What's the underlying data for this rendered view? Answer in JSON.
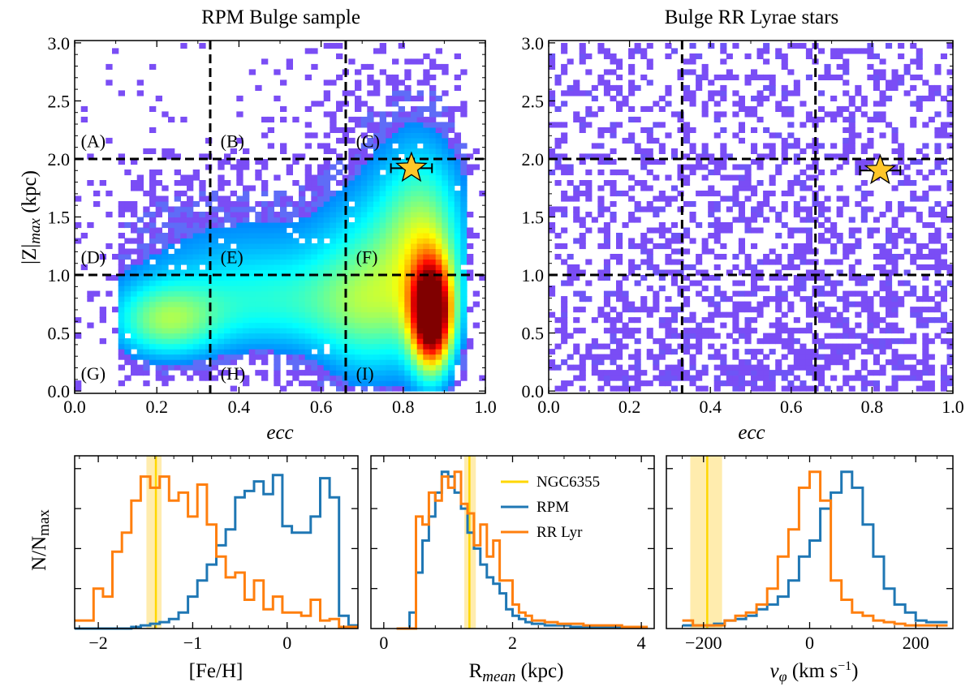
{
  "chart_data": [
    {
      "type": "heatmap",
      "title": "RPM Bulge sample",
      "xlabel": "ecc",
      "ylabel": "|Z|max (kpc)",
      "xlim": [
        0.0,
        1.0
      ],
      "ylim": [
        -0.02,
        3.02
      ],
      "xticks": [
        "0.0",
        "0.2",
        "0.4",
        "0.6",
        "0.8",
        "1.0"
      ],
      "yticks": [
        "0.0",
        "0.5",
        "1.0",
        "1.5",
        "2.0",
        "2.5",
        "3.0"
      ],
      "divider_lines": {
        "x": [
          0.33,
          0.66
        ],
        "y": [
          1.0,
          2.0
        ]
      },
      "region_labels": [
        "(A)",
        "(B)",
        "(C)",
        "(D)",
        "(E)",
        "(F)",
        "(G)",
        "(H)",
        "(I)"
      ],
      "marker": {
        "label": "NGC6355",
        "ecc": 0.82,
        "zmax": 1.92,
        "ecc_err": 0.05
      },
      "density_peaks": [
        {
          "ecc": 0.87,
          "zmax": 0.65,
          "level": "highest"
        },
        {
          "ecc": 0.22,
          "zmax": 0.6,
          "level": "moderate"
        }
      ]
    },
    {
      "type": "heatmap",
      "title": "Bulge RR Lyrae stars",
      "xlabel": "ecc",
      "ylabel": "",
      "xlim": [
        0.0,
        1.0
      ],
      "ylim": [
        -0.02,
        3.02
      ],
      "xticks": [
        "0.0",
        "0.2",
        "0.4",
        "0.6",
        "0.8",
        "1.0"
      ],
      "yticks": [
        "0.0",
        "0.5",
        "1.0",
        "1.5",
        "2.0",
        "2.5",
        "3.0"
      ],
      "divider_lines": {
        "x": [
          0.33,
          0.66
        ],
        "y": [
          1.0,
          2.0
        ]
      },
      "marker": {
        "label": "NGC6355",
        "ecc": 0.82,
        "zmax": 1.9,
        "ecc_err": 0.05
      }
    },
    {
      "type": "line",
      "step": true,
      "xlabel": "[Fe/H]",
      "ylabel": "N/Nmax",
      "xlim": [
        -2.25,
        0.75
      ],
      "ylim": [
        0,
        1.08
      ],
      "xticks": [
        -2,
        -1,
        0
      ],
      "xtick_labels": [
        "−2",
        "−1",
        "0"
      ],
      "reference": {
        "name": "NGC6355",
        "value": -1.39,
        "band": [
          -1.49,
          -1.33
        ]
      },
      "series": [
        {
          "name": "RPM",
          "edges": [
            -2.25,
            -2.15,
            -2.05,
            -1.95,
            -1.85,
            -1.75,
            -1.65,
            -1.55,
            -1.45,
            -1.35,
            -1.25,
            -1.15,
            -1.05,
            -0.95,
            -0.85,
            -0.75,
            -0.65,
            -0.55,
            -0.45,
            -0.35,
            -0.25,
            -0.15,
            -0.05,
            0.05,
            0.15,
            0.25,
            0.35,
            0.45,
            0.55,
            0.65,
            0.75
          ],
          "values": [
            0.0,
            0.0,
            0.0,
            0.0,
            0.0,
            0.0,
            0.01,
            0.02,
            0.03,
            0.04,
            0.06,
            0.1,
            0.2,
            0.3,
            0.4,
            0.52,
            0.62,
            0.82,
            0.86,
            0.92,
            0.84,
            0.96,
            0.64,
            0.6,
            0.6,
            0.7,
            0.94,
            0.82,
            0.08,
            0.02
          ]
        },
        {
          "name": "RR Lyr",
          "edges": [
            -2.25,
            -2.15,
            -2.05,
            -1.95,
            -1.85,
            -1.75,
            -1.65,
            -1.55,
            -1.45,
            -1.35,
            -1.25,
            -1.15,
            -1.05,
            -0.95,
            -0.85,
            -0.75,
            -0.65,
            -0.55,
            -0.45,
            -0.35,
            -0.25,
            -0.15,
            -0.05,
            0.05,
            0.15,
            0.25,
            0.35,
            0.45,
            0.55,
            0.65,
            0.75
          ],
          "values": [
            0.05,
            0.05,
            0.25,
            0.2,
            0.48,
            0.6,
            0.8,
            0.95,
            0.88,
            0.95,
            0.8,
            0.85,
            0.7,
            0.9,
            0.65,
            0.45,
            0.32,
            0.35,
            0.18,
            0.3,
            0.12,
            0.2,
            0.1,
            0.1,
            0.08,
            0.18,
            0.05,
            0.06,
            0.01,
            0.01
          ]
        }
      ]
    },
    {
      "type": "line",
      "step": true,
      "xlabel": "Rmean (kpc)",
      "ylabel": "",
      "xlim": [
        -0.2,
        4.2
      ],
      "ylim": [
        0,
        1.08
      ],
      "xticks": [
        0,
        2,
        4
      ],
      "xtick_labels": [
        "0",
        "2",
        "4"
      ],
      "reference": {
        "name": "NGC6355",
        "value": 1.33,
        "band": [
          1.25,
          1.43
        ]
      },
      "legend": {
        "entries": [
          "NGC6355",
          "RPM",
          "RR Lyr"
        ],
        "location": "upper-right"
      },
      "series": [
        {
          "name": "RPM",
          "edges": [
            0.2,
            0.4,
            0.5,
            0.6,
            0.7,
            0.8,
            0.9,
            1.0,
            1.1,
            1.2,
            1.3,
            1.4,
            1.5,
            1.6,
            1.7,
            1.8,
            1.9,
            2.0,
            2.1,
            2.2,
            2.3,
            2.5,
            2.7,
            2.9,
            3.1,
            3.3,
            3.5,
            3.7,
            3.9,
            4.1
          ],
          "values": [
            0.0,
            0.1,
            0.35,
            0.55,
            0.7,
            0.85,
            0.98,
            0.95,
            0.85,
            0.75,
            0.6,
            0.5,
            0.4,
            0.32,
            0.28,
            0.22,
            0.12,
            0.08,
            0.06,
            0.04,
            0.03,
            0.02,
            0.02,
            0.01,
            0.01,
            0.01,
            0.01,
            0.01,
            0.01
          ]
        },
        {
          "name": "RR Lyr",
          "edges": [
            0.2,
            0.4,
            0.5,
            0.6,
            0.7,
            0.8,
            0.9,
            1.0,
            1.1,
            1.2,
            1.3,
            1.4,
            1.5,
            1.6,
            1.7,
            1.8,
            1.9,
            2.0,
            2.1,
            2.2,
            2.3,
            2.5,
            2.7,
            2.9,
            3.1,
            3.3,
            3.5,
            3.7,
            3.9,
            4.1
          ],
          "values": [
            0.0,
            0.0,
            0.7,
            0.65,
            0.85,
            0.8,
            0.95,
            0.88,
            0.98,
            0.78,
            0.72,
            0.52,
            0.65,
            0.45,
            0.55,
            0.3,
            0.3,
            0.15,
            0.1,
            0.08,
            0.05,
            0.04,
            0.03,
            0.03,
            0.02,
            0.02,
            0.02,
            0.01,
            0.01
          ]
        }
      ]
    },
    {
      "type": "line",
      "step": true,
      "xlabel": "vφ (km s⁻¹)",
      "ylabel": "",
      "xlim": [
        -270,
        270
      ],
      "ylim": [
        0,
        1.08
      ],
      "xticks": [
        -200,
        0,
        200
      ],
      "xtick_labels": [
        "−200",
        "0",
        "200"
      ],
      "reference": {
        "name": "NGC6355",
        "value": -193,
        "band": [
          -225,
          -165
        ]
      },
      "series": [
        {
          "name": "RPM",
          "edges": [
            -240,
            -220,
            -200,
            -180,
            -160,
            -140,
            -120,
            -100,
            -80,
            -60,
            -40,
            -20,
            0,
            20,
            40,
            60,
            80,
            100,
            120,
            140,
            160,
            180,
            200,
            220,
            240,
            260
          ],
          "values": [
            0.02,
            0.02,
            0.02,
            0.03,
            0.05,
            0.06,
            0.08,
            0.12,
            0.15,
            0.2,
            0.3,
            0.45,
            0.55,
            0.75,
            0.85,
            0.98,
            0.88,
            0.65,
            0.45,
            0.25,
            0.15,
            0.1,
            0.05,
            0.04,
            0.04
          ]
        },
        {
          "name": "RR Lyr",
          "edges": [
            -240,
            -220,
            -200,
            -180,
            -160,
            -140,
            -120,
            -100,
            -80,
            -60,
            -40,
            -20,
            0,
            20,
            40,
            60,
            80,
            100,
            120,
            140,
            160,
            180,
            200,
            220,
            240,
            260
          ],
          "values": [
            0.05,
            0.02,
            0.02,
            0.02,
            0.05,
            0.08,
            0.1,
            0.15,
            0.25,
            0.45,
            0.62,
            0.88,
            0.98,
            0.8,
            0.3,
            0.18,
            0.1,
            0.08,
            0.05,
            0.04,
            0.03,
            0.02,
            0.02,
            0.02,
            0.02
          ]
        }
      ]
    }
  ],
  "colors": {
    "rpm": "#1f77b4",
    "rrlyr": "#ff7f0e",
    "ngc6355": "#ffd700",
    "ngc_band": "#ffe9a0",
    "star_fill": "#ffc629",
    "low_density": "#7a4df5"
  }
}
